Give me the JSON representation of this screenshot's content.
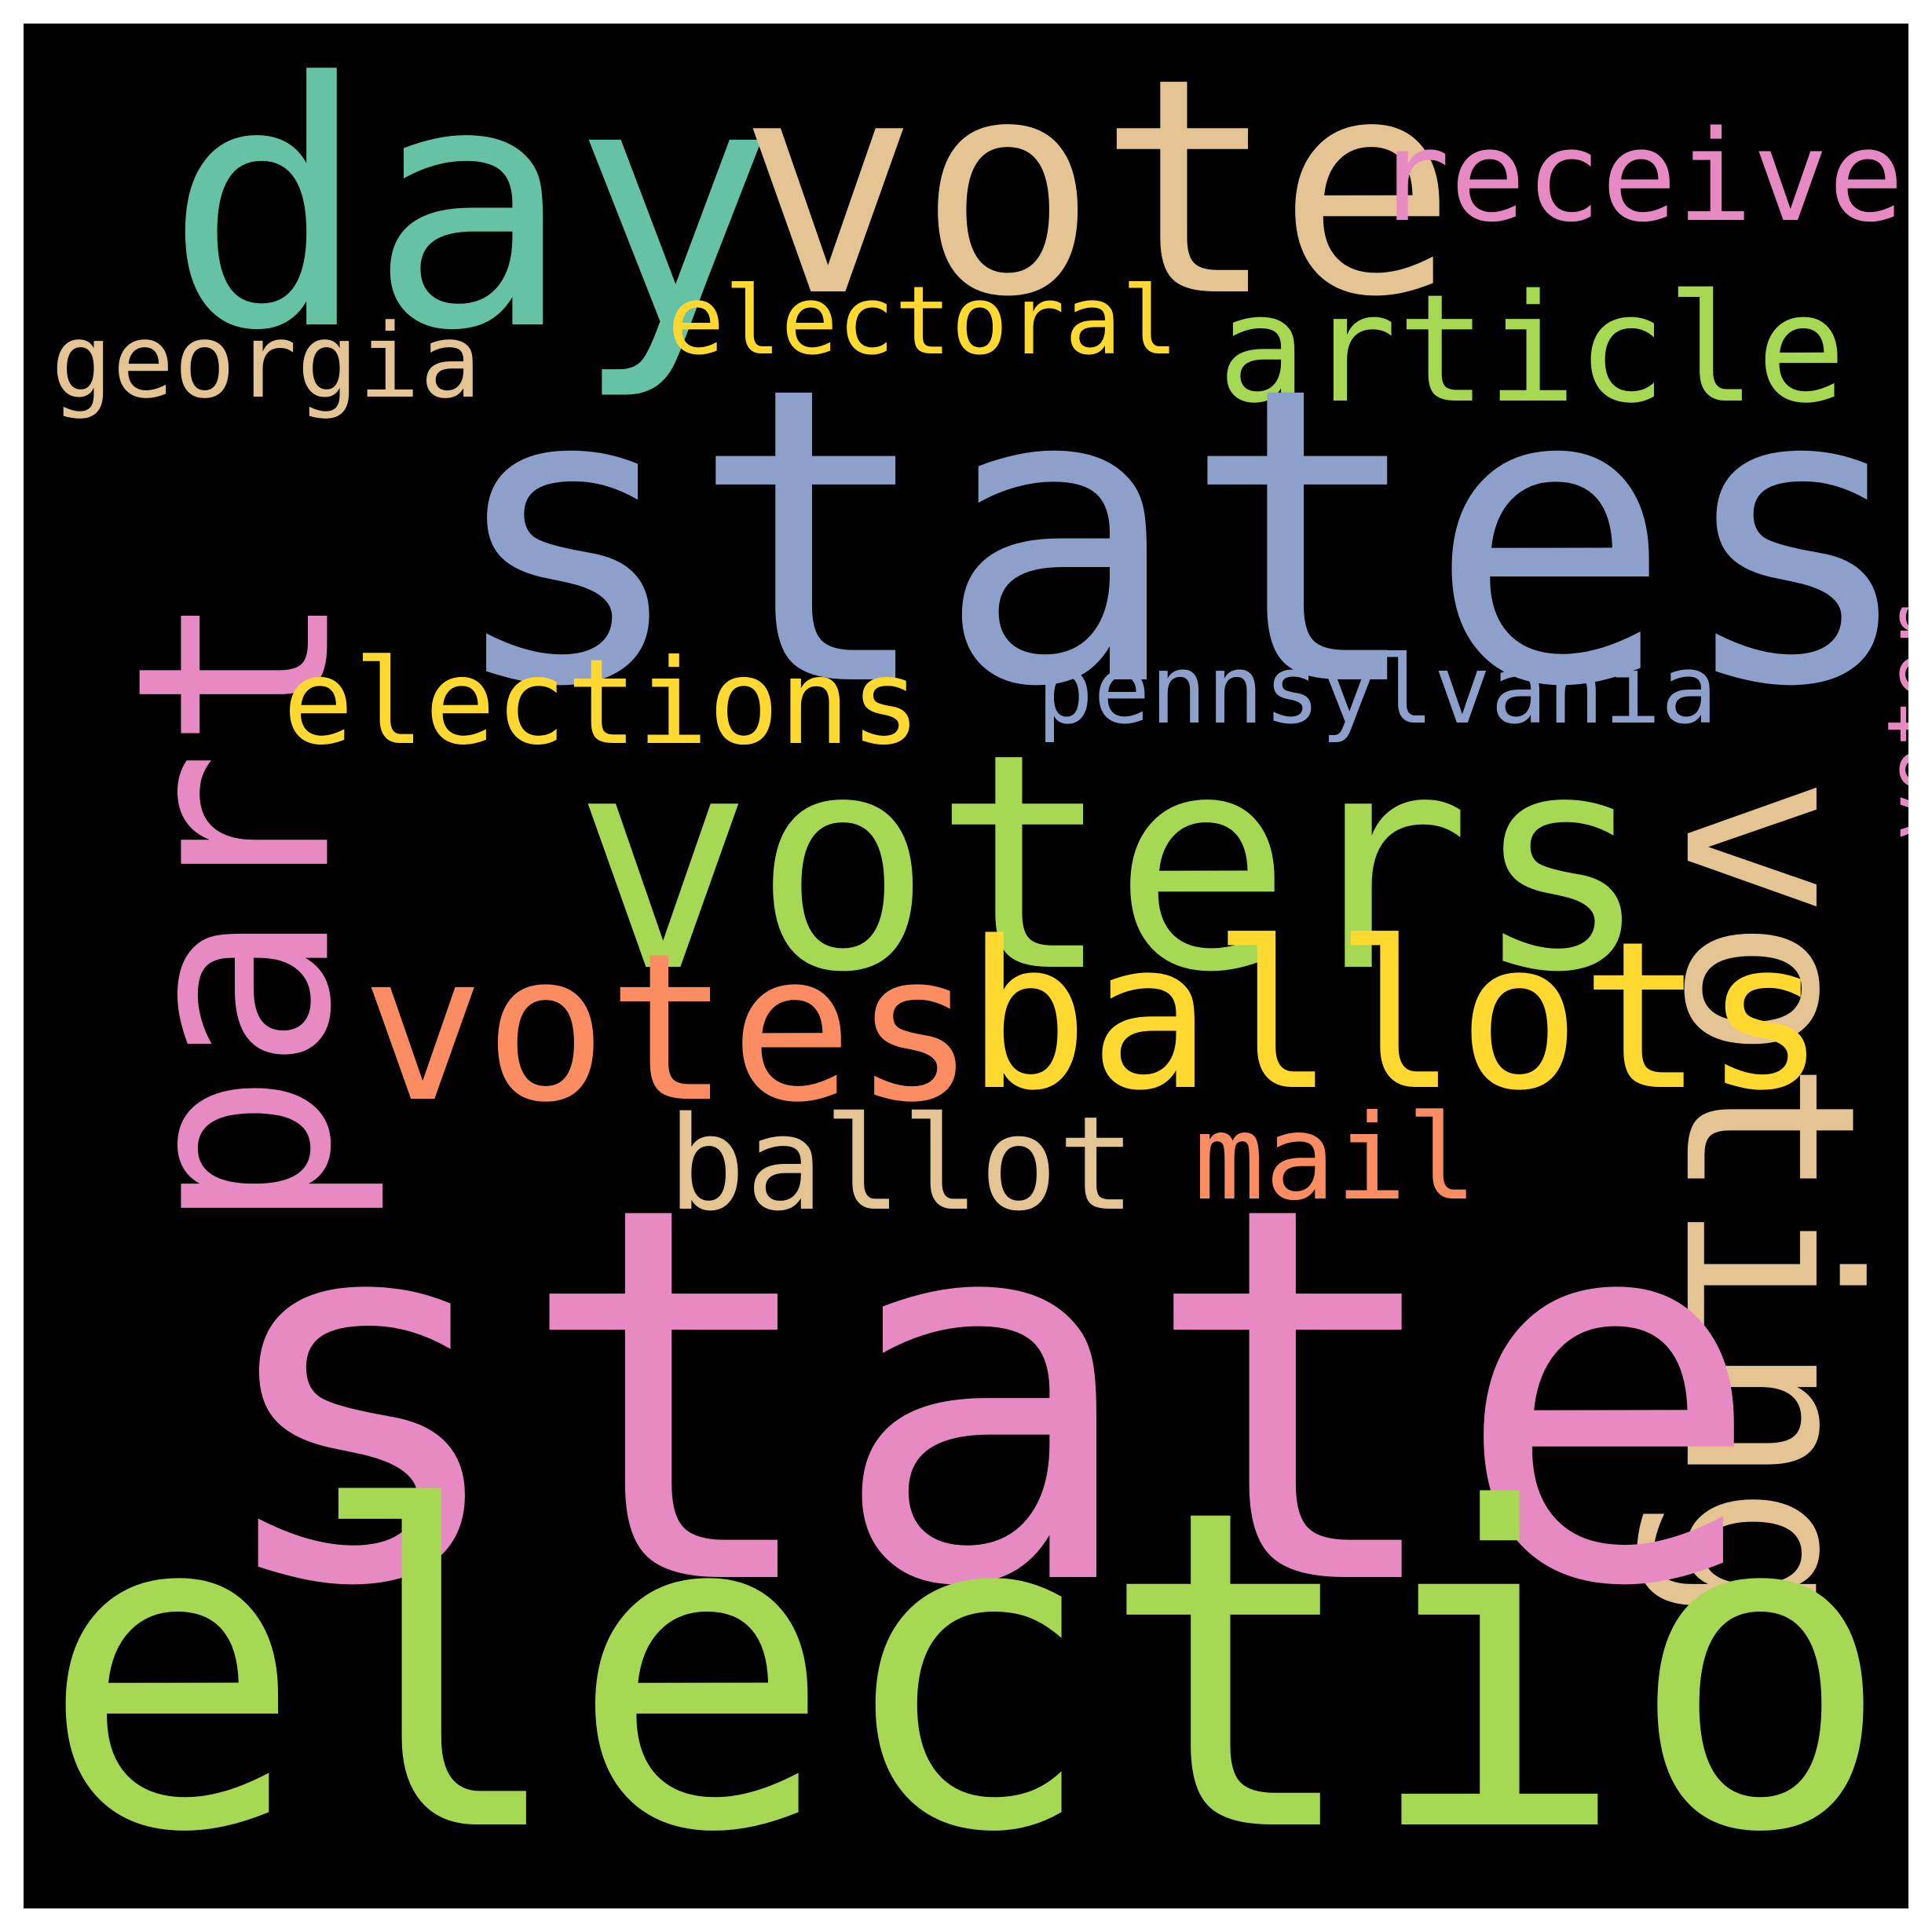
{
  "wordcloud": {
    "background": "#000000",
    "words": [
      {
        "key": "day",
        "text": "day",
        "color": "#66c2a5"
      },
      {
        "key": "vote",
        "text": "vote",
        "color": "#e5c494"
      },
      {
        "key": "receive",
        "text": "receive",
        "color": "#e78ac3"
      },
      {
        "key": "electoral",
        "text": "electoral",
        "color": "#ffd92f"
      },
      {
        "key": "article",
        "text": "article",
        "color": "#a6d854"
      },
      {
        "key": "georgia",
        "text": "georgia",
        "color": "#e5c494"
      },
      {
        "key": "states",
        "text": "states",
        "color": "#8da0cb"
      },
      {
        "key": "part",
        "text": "part",
        "color": "#e78ac3"
      },
      {
        "key": "elections",
        "text": "elections",
        "color": "#ffd92f"
      },
      {
        "key": "pennsylvania",
        "text": "pennsylvania",
        "color": "#8da0cb"
      },
      {
        "key": "voter",
        "text": "voter",
        "color": "#e78ac3"
      },
      {
        "key": "voters",
        "text": "voters",
        "color": "#a6d854"
      },
      {
        "key": "voting",
        "text": "voting",
        "color": "#e5c494"
      },
      {
        "key": "votes",
        "text": "votes",
        "color": "#fc8d62"
      },
      {
        "key": "ballots",
        "text": "ballots",
        "color": "#ffd92f"
      },
      {
        "key": "ballot",
        "text": "ballot",
        "color": "#e5c494"
      },
      {
        "key": "mail",
        "text": "mail",
        "color": "#fc8d62"
      },
      {
        "key": "state",
        "text": "state",
        "color": "#e78ac3"
      },
      {
        "key": "election",
        "text": "election",
        "color": "#a6d854"
      }
    ]
  }
}
